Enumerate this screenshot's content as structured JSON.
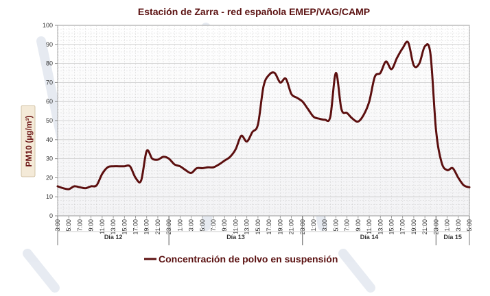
{
  "colors": {
    "series": "#5c0f0f",
    "title": "#5a1010",
    "grid": "#c8c8c8",
    "axis": "#888888",
    "ylabel_bg": "#f4ead8"
  },
  "chart_data": {
    "type": "line",
    "title": "Estación de Zarra - red española EMEP/VAG/CAMP",
    "ylabel": "PM10 (µg/m³)",
    "xlabel": "",
    "ylim": [
      0,
      100
    ],
    "yticks": [
      0,
      10,
      20,
      30,
      40,
      50,
      60,
      70,
      80,
      90,
      100
    ],
    "x_hour_range": [
      3,
      77
    ],
    "xtick_labels": [
      "3:00",
      "5:00",
      "7:00",
      "9:00",
      "11:00",
      "13:00",
      "15:00",
      "17:00",
      "19:00",
      "21:00",
      "23:00",
      "1:00",
      "3:00",
      "5:00",
      "7:00",
      "9:00",
      "11:00",
      "13:00",
      "15:00",
      "17:00",
      "19:00",
      "21:00",
      "23:00",
      "1:00",
      "3:00",
      "5:00",
      "7:00",
      "9:00",
      "11:00",
      "13:00",
      "15:00",
      "17:00",
      "19:00",
      "21:00",
      "23:00",
      "1:00",
      "3:00",
      "5:00"
    ],
    "day_groups": [
      {
        "label": "Día 12",
        "from_hour": 3,
        "to_hour": 23
      },
      {
        "label": "Día 13",
        "from_hour": 23,
        "to_hour": 47
      },
      {
        "label": "Día 14",
        "from_hour": 47,
        "to_hour": 71
      },
      {
        "label": "Día 15",
        "from_hour": 71,
        "to_hour": 77
      }
    ],
    "grid": true,
    "legend_position": "bottom",
    "series": [
      {
        "name": "Concentración de polvo en suspensión",
        "x": [
          3,
          4,
          5,
          6,
          7,
          8,
          9,
          10,
          11,
          12,
          13,
          14,
          15,
          16,
          17,
          18,
          19,
          20,
          21,
          22,
          23,
          24,
          25,
          26,
          27,
          28,
          29,
          30,
          31,
          32,
          33,
          34,
          35,
          36,
          37,
          38,
          39,
          40,
          41,
          42,
          43,
          44,
          45,
          46,
          47,
          48,
          49,
          50,
          51,
          52,
          53,
          54,
          55,
          56,
          57,
          58,
          59,
          60,
          61,
          62,
          63,
          64,
          65,
          66,
          67,
          68,
          69,
          70,
          71,
          72,
          73,
          74,
          75,
          76,
          77
        ],
        "values": [
          15.5,
          14.5,
          14,
          15.5,
          15,
          14.5,
          15.5,
          16,
          22,
          25.5,
          26,
          26,
          26,
          26,
          20,
          18.5,
          34,
          30,
          29.5,
          31,
          30,
          27,
          26,
          24,
          22.5,
          25,
          25,
          25.5,
          25.5,
          27,
          29,
          31,
          35,
          42,
          39,
          44,
          48,
          68,
          74,
          75,
          70,
          72,
          64,
          62,
          60,
          56,
          52,
          51,
          50.5,
          52,
          75,
          56,
          54,
          51,
          49.5,
          53,
          60,
          73,
          75,
          81,
          77,
          83,
          88,
          91,
          79,
          80,
          89,
          85,
          45,
          28,
          24,
          25,
          20,
          16,
          15
        ]
      }
    ]
  }
}
